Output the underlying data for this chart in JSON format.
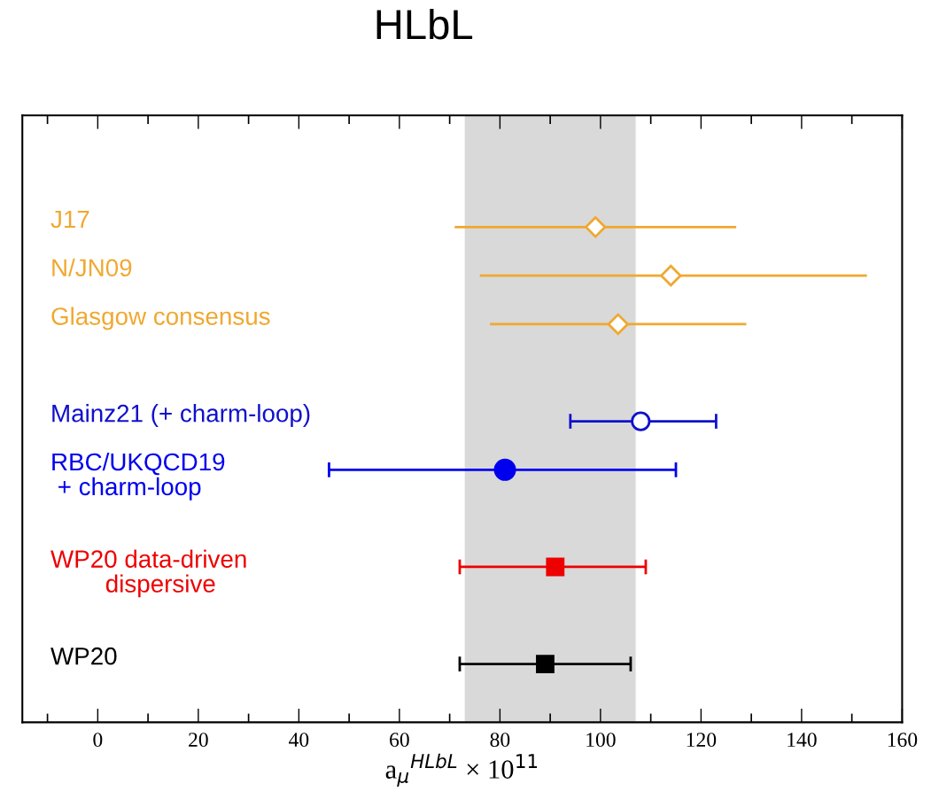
{
  "chart_data": {
    "type": "scatter",
    "orientation": "horizontal",
    "title": "HLbL",
    "xlabel": "a$_{μ}$$^{HLbL}$ × 10$^{11}$",
    "categories": [
      "J17",
      "N/JN09",
      "Glasgow consensus",
      null,
      "Mainz21 (+ charm-loop)",
      "RBC/UKQCD19\n + charm-loop",
      null,
      "WP20 data-driven\n        dispersive",
      null,
      "WP20"
    ],
    "xlim": [
      -15,
      160
    ],
    "xticks": [
      {
        "value": -10,
        "label": null
      },
      0,
      {
        "value": 10,
        "label": null
      },
      20,
      {
        "value": 30,
        "label": null
      },
      40,
      {
        "value": 50,
        "label": null
      },
      60,
      {
        "value": 70,
        "label": null
      },
      80,
      {
        "value": 90,
        "label": null
      },
      100,
      {
        "value": 110,
        "label": null
      },
      120,
      {
        "value": 130,
        "label": null
      },
      140,
      {
        "value": 150,
        "label": null
      },
      160
    ],
    "bands": [
      {
        "axis": "x",
        "from": 73,
        "to": 107,
        "color": "#d9d9d9"
      }
    ],
    "grid": false,
    "legend": false,
    "tick_labels": "x",
    "series": [
      {
        "color": "#f0a830",
        "marker": "diamond-open",
        "values": [
          99,
          114,
          103.5,
          null,
          null,
          null,
          null,
          null,
          null,
          null
        ],
        "errors": [
          [
            71,
            127
          ],
          [
            76,
            153
          ],
          [
            78,
            129
          ],
          null,
          null,
          null,
          null,
          null,
          null,
          null
        ]
      },
      {
        "color": "#1010cc",
        "marker": "circle-open",
        "values": [
          null,
          null,
          null,
          null,
          108,
          null,
          null,
          null,
          null,
          null
        ],
        "errors": [
          null,
          null,
          null,
          null,
          [
            94,
            123
          ],
          null,
          null,
          null,
          null,
          null
        ]
      },
      {
        "color": "#0000ee",
        "marker": "circle",
        "values": [
          null,
          null,
          null,
          null,
          null,
          81,
          null,
          null,
          null,
          null
        ],
        "errors": [
          null,
          null,
          null,
          null,
          null,
          [
            46,
            115
          ],
          null,
          null,
          null,
          null
        ]
      },
      {
        "color": "#ee0000",
        "marker": "square",
        "values": [
          null,
          null,
          null,
          null,
          null,
          null,
          null,
          91,
          null,
          null
        ],
        "errors": [
          null,
          null,
          null,
          null,
          null,
          null,
          null,
          [
            72,
            109
          ],
          null,
          null
        ]
      },
      {
        "color": "#000000",
        "marker": "square",
        "values": [
          null,
          null,
          null,
          null,
          null,
          null,
          null,
          null,
          null,
          89
        ],
        "errors": [
          null,
          null,
          null,
          null,
          null,
          null,
          null,
          null,
          null,
          [
            72,
            106
          ]
        ]
      }
    ]
  }
}
